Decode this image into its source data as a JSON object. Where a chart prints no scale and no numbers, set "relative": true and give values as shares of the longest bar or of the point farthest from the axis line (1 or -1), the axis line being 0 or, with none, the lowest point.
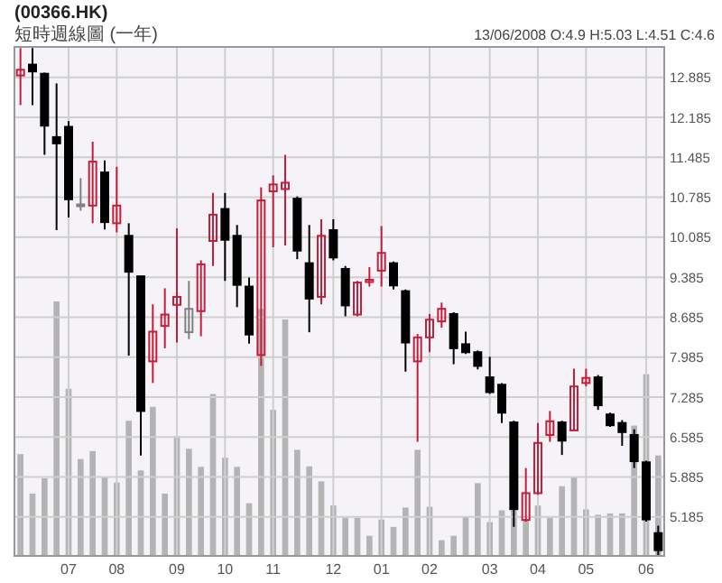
{
  "chart_data": [
    {
      "type": "candlestick",
      "title": "(00366.HK)",
      "subtitle": "短時週線圖 (一年)",
      "annotations": [
        "13/06/2008  O:4.9  H:5.03  L:4.51  C:4.6"
      ],
      "categories": [
        null,
        null,
        null,
        null,
        "07",
        null,
        null,
        null,
        "08",
        null,
        null,
        null,
        null,
        "09",
        null,
        null,
        null,
        "10",
        null,
        null,
        null,
        "11",
        null,
        null,
        null,
        null,
        "12",
        null,
        null,
        null,
        "01",
        null,
        null,
        null,
        "02",
        null,
        null,
        null,
        null,
        "03",
        null,
        null,
        null,
        "04",
        null,
        null,
        null,
        "05",
        null,
        null,
        null,
        null,
        "06",
        null
      ],
      "ohlc": [
        [
          12.92,
          13.4,
          12.4,
          13.02
        ],
        [
          13.11,
          13.4,
          12.4,
          12.99
        ],
        [
          12.95,
          12.97,
          11.53,
          12.04
        ],
        [
          11.84,
          12.78,
          10.21,
          11.73
        ],
        [
          12.02,
          12.12,
          10.43,
          10.75
        ],
        [
          10.66,
          11.12,
          10.55,
          10.66
        ],
        [
          10.64,
          11.76,
          10.33,
          11.41
        ],
        [
          11.22,
          11.43,
          10.22,
          10.35
        ],
        [
          10.33,
          11.32,
          10.17,
          10.64
        ],
        [
          10.11,
          10.33,
          8.01,
          9.48
        ],
        [
          9.4,
          9.4,
          6.26,
          7.04
        ],
        [
          7.91,
          8.91,
          7.53,
          8.43
        ],
        [
          8.53,
          9.19,
          8.14,
          8.73
        ],
        [
          8.9,
          10.24,
          8.24,
          9.04
        ],
        [
          8.42,
          9.32,
          8.3,
          8.83
        ],
        [
          8.79,
          9.68,
          8.35,
          9.61
        ],
        [
          10.02,
          10.86,
          9.58,
          10.48
        ],
        [
          10.58,
          10.86,
          9.32,
          10.04
        ],
        [
          10.11,
          10.3,
          8.86,
          9.25
        ],
        [
          9.22,
          9.38,
          8.22,
          8.38
        ],
        [
          8.02,
          10.96,
          7.83,
          10.73
        ],
        [
          10.89,
          11.17,
          9.91,
          11.01
        ],
        [
          10.93,
          11.53,
          9.94,
          11.04
        ],
        [
          10.76,
          10.8,
          9.7,
          9.85
        ],
        [
          9.63,
          10.3,
          8.42,
          9.01
        ],
        [
          9.04,
          10.4,
          8.91,
          10.11
        ],
        [
          10.21,
          10.4,
          9.68,
          9.73
        ],
        [
          9.53,
          9.58,
          8.7,
          8.89
        ],
        [
          8.73,
          9.32,
          8.7,
          9.29
        ],
        [
          9.3,
          9.56,
          9.22,
          9.34
        ],
        [
          9.5,
          10.28,
          9.22,
          9.81
        ],
        [
          9.63,
          9.66,
          9.17,
          9.24
        ],
        [
          9.14,
          9.17,
          7.73,
          8.24
        ],
        [
          7.91,
          8.39,
          6.5,
          8.33
        ],
        [
          8.33,
          8.74,
          8.07,
          8.64
        ],
        [
          8.61,
          8.94,
          8.5,
          8.83
        ],
        [
          8.74,
          8.77,
          7.86,
          8.14
        ],
        [
          8.21,
          8.43,
          8.04,
          8.07
        ],
        [
          8.07,
          8.1,
          7.77,
          7.83
        ],
        [
          7.63,
          7.99,
          7.34,
          7.37
        ],
        [
          7.5,
          7.53,
          6.83,
          7.01
        ],
        [
          6.84,
          6.87,
          5.01,
          5.32
        ],
        [
          5.13,
          6.04,
          5.1,
          5.6
        ],
        [
          5.6,
          6.83,
          5.57,
          6.48
        ],
        [
          6.62,
          7.04,
          6.5,
          6.86
        ],
        [
          6.84,
          6.87,
          6.27,
          6.52
        ],
        [
          6.7,
          7.78,
          6.7,
          7.47
        ],
        [
          7.53,
          7.78,
          7.47,
          7.62
        ],
        [
          7.63,
          7.67,
          7.06,
          7.14
        ],
        [
          6.98,
          7.01,
          6.76,
          6.79
        ],
        [
          6.83,
          6.88,
          6.43,
          6.67
        ],
        [
          6.62,
          6.72,
          6.04,
          6.16
        ],
        [
          6.14,
          6.17,
          5.1,
          5.14
        ],
        [
          4.9,
          5.03,
          4.51,
          4.6
        ]
      ],
      "colors": [
        "#c41e3a",
        "#000000",
        "#000000",
        "#000000",
        "#000000",
        "#808080",
        "#c41e3a",
        "#000000",
        "#c41e3a",
        "#000000",
        "#000000",
        "#c41e3a",
        "#c41e3a",
        "#c41e3a",
        "#808080",
        "#c41e3a",
        "#c41e3a",
        "#000000",
        "#000000",
        "#000000",
        "#c41e3a",
        "#c41e3a",
        "#c41e3a",
        "#000000",
        "#000000",
        "#c41e3a",
        "#000000",
        "#000000",
        "#c41e3a",
        "#c41e3a",
        "#c41e3a",
        "#000000",
        "#000000",
        "#c41e3a",
        "#c41e3a",
        "#c41e3a",
        "#000000",
        "#000000",
        "#000000",
        "#000000",
        "#000000",
        "#000000",
        "#c41e3a",
        "#c41e3a",
        "#c41e3a",
        "#000000",
        "#c41e3a",
        "#c41e3a",
        "#000000",
        "#000000",
        "#000000",
        "#000000",
        "#000000",
        "#000000"
      ],
      "ylim": [
        4.5,
        13.42
      ],
      "yticks": [
        5.185,
        5.885,
        6.585,
        7.285,
        7.985,
        8.685,
        9.385,
        10.085,
        10.785,
        11.485,
        12.185,
        12.885
      ],
      "grid": true
    },
    {
      "type": "bar",
      "relative": true,
      "color": "#b4b4b4",
      "categories": [
        null,
        null,
        null,
        null,
        null,
        null,
        null,
        null,
        null,
        null,
        null,
        null,
        null,
        null,
        null,
        null,
        null,
        null,
        null,
        null,
        null,
        null,
        null,
        null,
        null,
        null,
        null,
        null,
        null,
        null,
        null,
        null,
        null,
        null,
        null,
        null,
        null,
        null,
        null,
        null,
        null,
        null,
        null,
        null,
        null,
        null,
        null,
        null,
        null,
        null,
        null,
        null,
        null,
        null
      ],
      "values": [
        0.4,
        0.245,
        0.305,
        1,
        0.657,
        0.381,
        0.412,
        0.31,
        0.288,
        0.531,
        0.336,
        0.586,
        0.245,
        0.471,
        0.421,
        0.35,
        0.636,
        0.386,
        0.35,
        0.207,
        0.971,
        0.574,
        0.929,
        0.417,
        0.352,
        0.293,
        0.198,
        0.15,
        0.15,
        0.079,
        0.143,
        0.114,
        0.19,
        0.417,
        0.193,
        0.062,
        0.079,
        0.155,
        0.286,
        0.133,
        0.179,
        0.198,
        0.138,
        0.198,
        0.15,
        0.274,
        0.312,
        0.183,
        0.162,
        0.167,
        0.167,
        0.512,
        0.714,
        0.395
      ]
    }
  ]
}
